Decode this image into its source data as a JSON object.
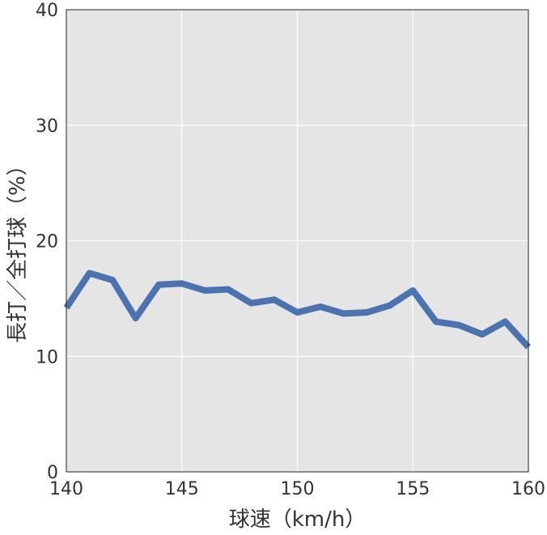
{
  "chart_data": {
    "type": "line",
    "xlabel": "球速（km/h）",
    "ylabel": "長打／全打球（%）",
    "xlim": [
      140,
      160
    ],
    "ylim": [
      0,
      40
    ],
    "x_ticks": [
      "140",
      "145",
      "150",
      "155",
      "160"
    ],
    "y_ticks": [
      "0",
      "10",
      "20",
      "30",
      "40"
    ],
    "grid": true,
    "background_color": "#e5e5e5",
    "line_color": "#4c72b0",
    "series": [
      {
        "x": [
          140,
          141,
          142,
          143,
          144,
          145,
          146,
          147,
          148,
          149,
          150,
          151,
          152,
          153,
          154,
          155,
          156,
          157,
          158,
          159,
          160
        ],
        "values": [
          14.2,
          17.2,
          16.6,
          13.3,
          16.2,
          16.3,
          15.7,
          15.8,
          14.6,
          14.9,
          13.8,
          14.3,
          13.7,
          13.8,
          14.4,
          15.7,
          13.0,
          12.7,
          11.9,
          13.0,
          10.8
        ]
      }
    ]
  }
}
